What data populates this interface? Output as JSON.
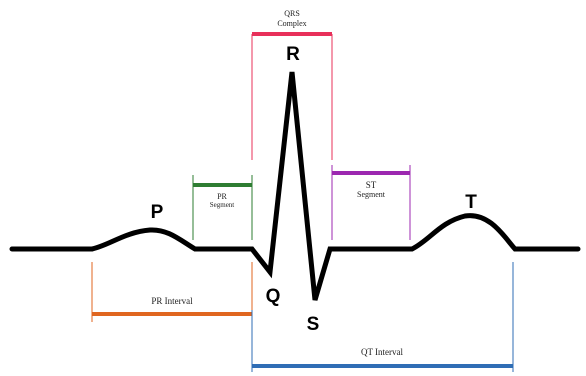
{
  "waves": {
    "p": "P",
    "q": "Q",
    "r": "R",
    "s": "S",
    "t": "T"
  },
  "labels": {
    "qrs_line1": "QRS",
    "qrs_line2": "Complex",
    "pr_segment_line1": "PR",
    "pr_segment_line2": "Segment",
    "st_segment_line1": "ST",
    "st_segment_line2": "Segment",
    "pr_interval": "PR Interval",
    "qt_interval": "QT Interval"
  },
  "colors": {
    "trace": "#000000",
    "qrs": "#e8305a",
    "pr_segment": "#2e7d32",
    "st_segment": "#9c27b0",
    "pr_interval": "#e0661f",
    "qt_interval": "#2f6db5"
  }
}
